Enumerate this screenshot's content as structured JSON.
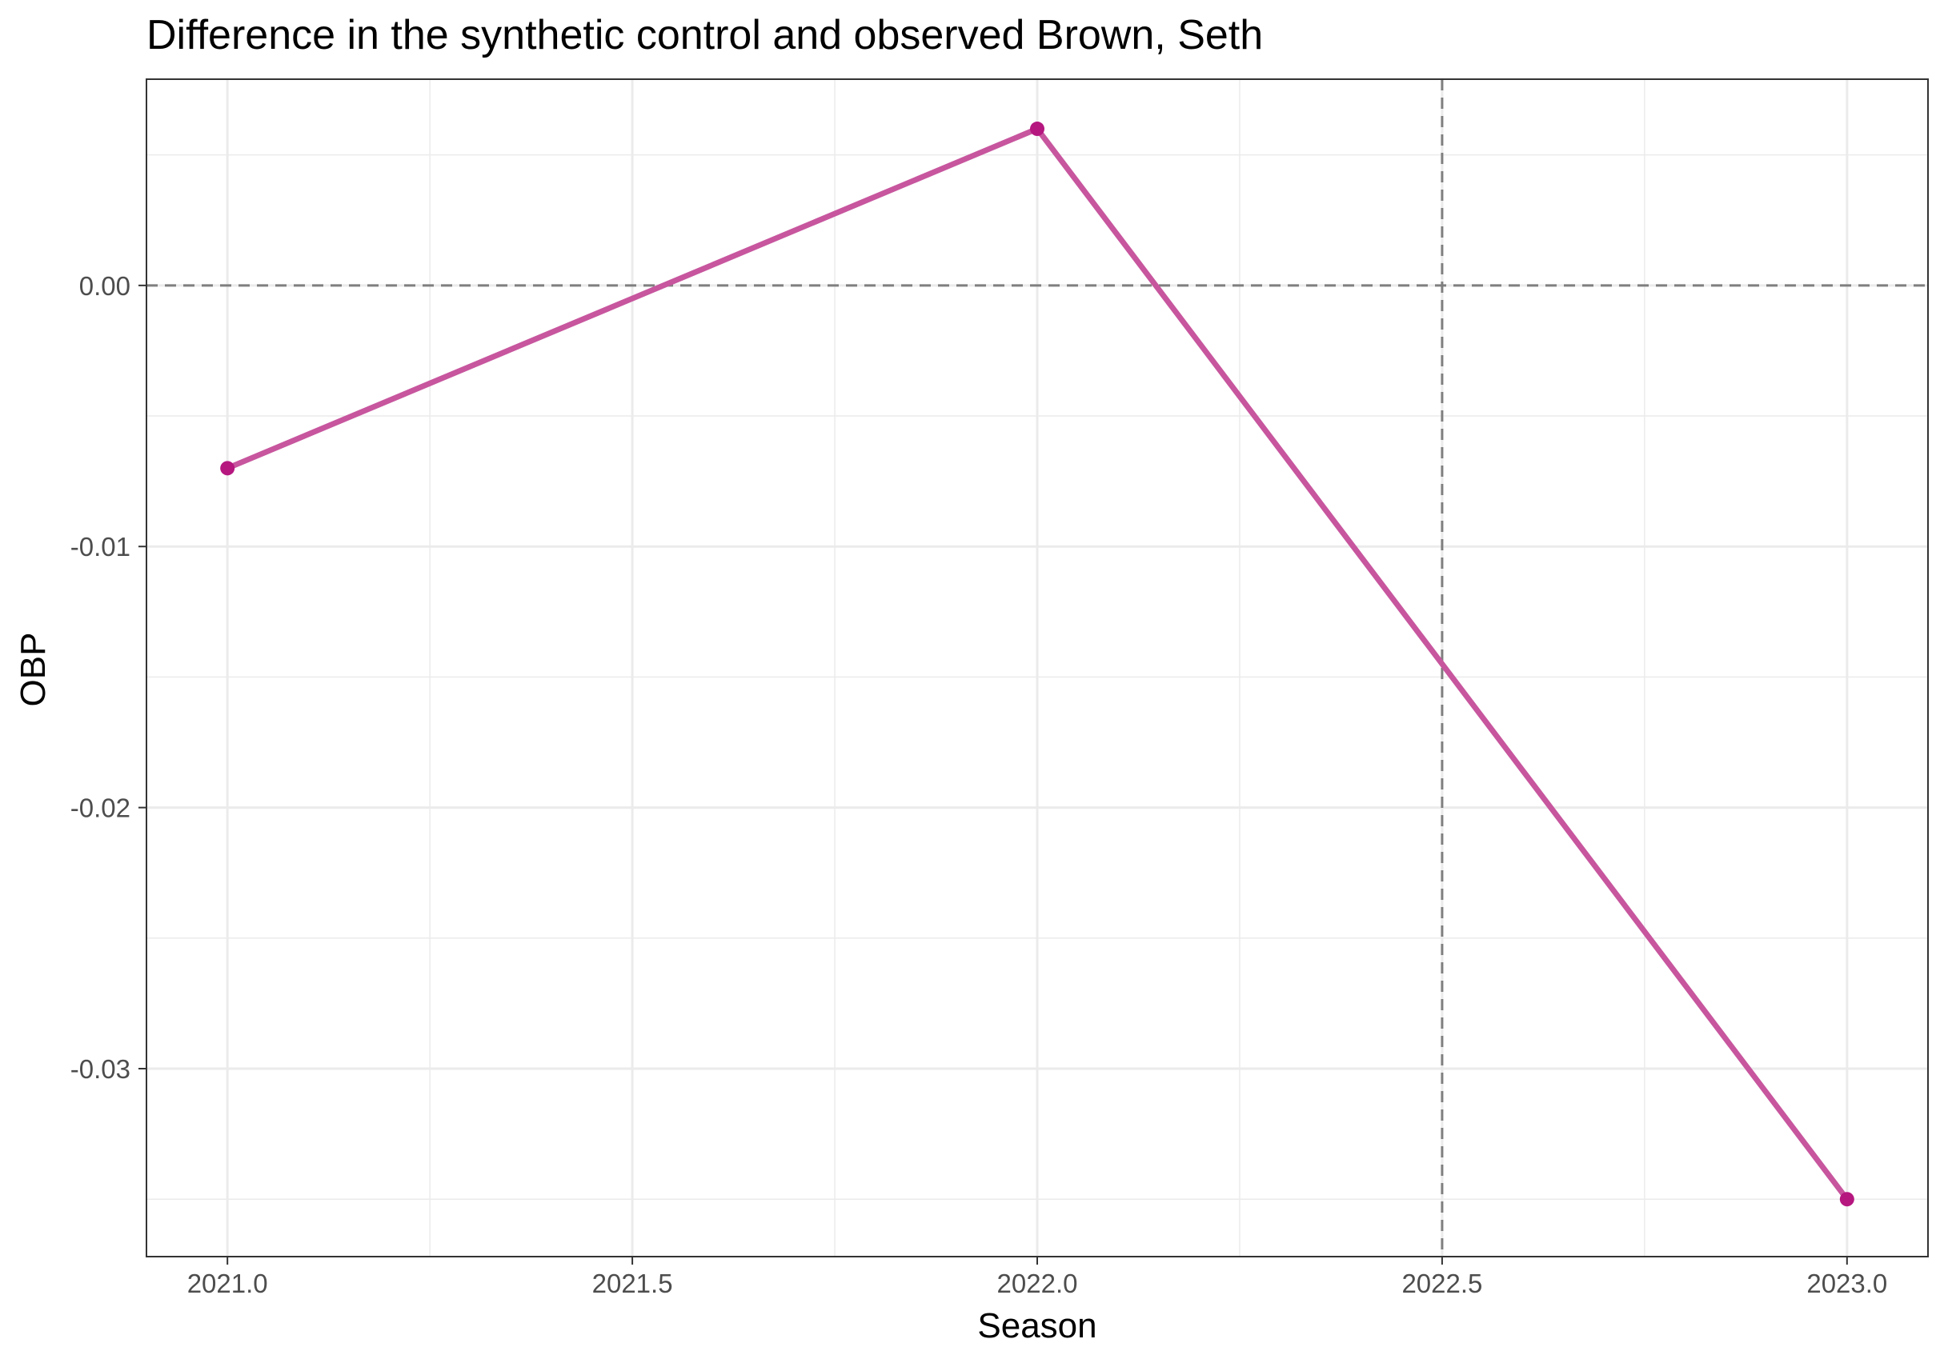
{
  "chart_data": {
    "type": "line",
    "title": "Difference in the synthetic control and observed Brown, Seth",
    "xlabel": "Season",
    "ylabel": "OBP",
    "xlim": [
      2020.9,
      2023.1
    ],
    "ylim": [
      -0.0372,
      0.0079
    ],
    "x_ticks": [
      2021.0,
      2021.5,
      2022.0,
      2022.5,
      2023.0
    ],
    "x_tick_labels": [
      "2021.0",
      "2021.5",
      "2022.0",
      "2022.5",
      "2023.0"
    ],
    "x_minor_ticks": [
      2021.25,
      2021.75,
      2022.25,
      2022.75
    ],
    "y_ticks": [
      0.0,
      -0.01,
      -0.02,
      -0.03
    ],
    "y_tick_labels": [
      "0.00",
      "-0.01",
      "-0.02",
      "-0.03"
    ],
    "y_minor_ticks": [
      0.005,
      -0.005,
      -0.015,
      -0.025,
      -0.035
    ],
    "grid": true,
    "series": [
      {
        "x": [
          2021.0,
          2022.0,
          2023.0
        ],
        "values": [
          -0.007,
          0.006,
          -0.035
        ]
      }
    ],
    "reference_lines": {
      "horizontal": 0.0,
      "vertical": 2022.5
    },
    "colors": {
      "line": "#c7569e",
      "point": "#b5177f",
      "reference": "#7f7f7f",
      "grid": "#ebebeb",
      "panel_border": "#333333"
    }
  }
}
